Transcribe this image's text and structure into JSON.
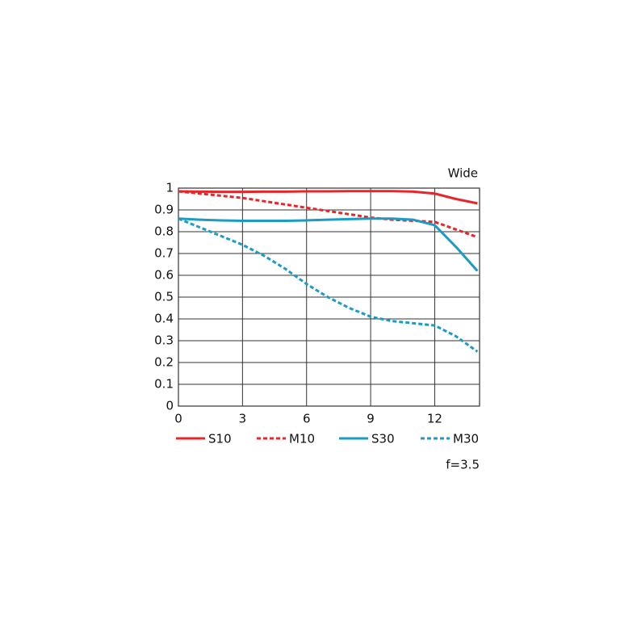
{
  "chart_data": {
    "type": "line",
    "title": "Wide",
    "note": "f=3.5",
    "x": [
      0,
      1,
      2,
      3,
      4,
      5,
      6,
      7,
      8,
      9,
      10,
      11,
      12,
      13,
      14
    ],
    "xlim": [
      0,
      14.1
    ],
    "xticks": [
      0,
      3,
      6,
      9,
      12
    ],
    "ylim": [
      0,
      1
    ],
    "yticks": [
      0,
      0.1,
      0.2,
      0.3,
      0.4,
      0.5,
      0.6,
      0.7,
      0.8,
      0.9,
      1
    ],
    "grid": true,
    "series": [
      {
        "name": "S10",
        "color": "#e8262a",
        "dashed": false,
        "values": [
          0.985,
          0.984,
          0.983,
          0.983,
          0.984,
          0.984,
          0.985,
          0.985,
          0.986,
          0.986,
          0.986,
          0.984,
          0.975,
          0.95,
          0.93
        ]
      },
      {
        "name": "M10",
        "color": "#e8262a",
        "dashed": true,
        "values": [
          0.985,
          0.975,
          0.965,
          0.955,
          0.94,
          0.925,
          0.91,
          0.895,
          0.88,
          0.865,
          0.855,
          0.85,
          0.845,
          0.81,
          0.775
        ]
      },
      {
        "name": "S30",
        "color": "#1b9bc6",
        "dashed": false,
        "values": [
          0.86,
          0.855,
          0.852,
          0.85,
          0.85,
          0.85,
          0.852,
          0.855,
          0.858,
          0.86,
          0.86,
          0.855,
          0.83,
          0.73,
          0.62
        ]
      },
      {
        "name": "M30",
        "color": "#1b9bc6",
        "dashed": true,
        "values": [
          0.86,
          0.82,
          0.78,
          0.74,
          0.69,
          0.63,
          0.56,
          0.5,
          0.45,
          0.41,
          0.39,
          0.38,
          0.37,
          0.32,
          0.25
        ]
      }
    ]
  }
}
